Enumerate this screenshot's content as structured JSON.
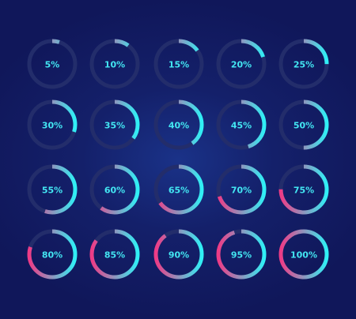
{
  "colors": {
    "background": "#121a4a",
    "track": "#232d6b",
    "arc_start": "#ee3b86",
    "arc_end": "#2ff0f6",
    "label": "#43e6f2"
  },
  "indicators": [
    {
      "value": 5,
      "label": "5%"
    },
    {
      "value": 10,
      "label": "10%"
    },
    {
      "value": 15,
      "label": "15%"
    },
    {
      "value": 20,
      "label": "20%"
    },
    {
      "value": 25,
      "label": "25%"
    },
    {
      "value": 30,
      "label": "30%"
    },
    {
      "value": 35,
      "label": "35%"
    },
    {
      "value": 40,
      "label": "40%"
    },
    {
      "value": 45,
      "label": "45%"
    },
    {
      "value": 50,
      "label": "50%"
    },
    {
      "value": 55,
      "label": "55%"
    },
    {
      "value": 60,
      "label": "60%"
    },
    {
      "value": 65,
      "label": "65%"
    },
    {
      "value": 70,
      "label": "70%"
    },
    {
      "value": 75,
      "label": "75%"
    },
    {
      "value": 80,
      "label": "80%"
    },
    {
      "value": 85,
      "label": "85%"
    },
    {
      "value": 90,
      "label": "90%"
    },
    {
      "value": 95,
      "label": "95%"
    },
    {
      "value": 100,
      "label": "100%"
    }
  ]
}
